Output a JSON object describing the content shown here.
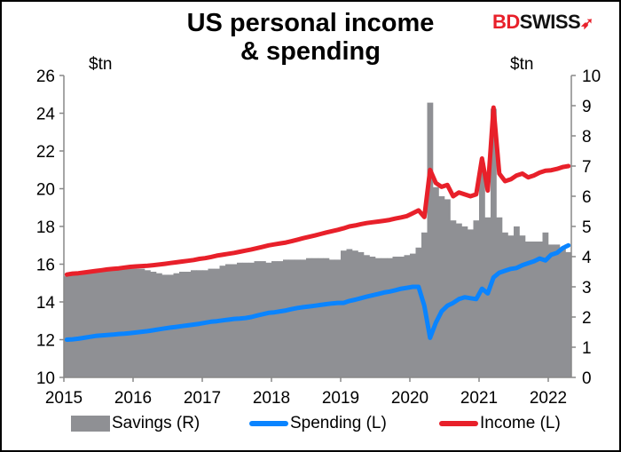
{
  "title_line1": "US personal income",
  "title_line2": "& spending",
  "logo": {
    "part1": "BD",
    "part2": "SWISS",
    "mark": "➶"
  },
  "chart_data": {
    "type": "bar+line",
    "title": "US personal income & spending",
    "left_axis": {
      "label": "$tn",
      "range": [
        10,
        26
      ],
      "ticks": [
        10,
        12,
        14,
        16,
        18,
        20,
        22,
        24,
        26
      ]
    },
    "right_axis": {
      "label": "$tn",
      "range": [
        0,
        10
      ],
      "ticks": [
        0,
        1,
        2,
        3,
        4,
        5,
        6,
        7,
        8,
        9,
        10
      ]
    },
    "x_axis": {
      "ticks": [
        "2015",
        "2016",
        "2017",
        "2018",
        "2019",
        "2020",
        "2021",
        "2022"
      ],
      "start": "2015-01",
      "end": "2022-04",
      "frequency": "monthly"
    },
    "grid": false,
    "legend_placement": "bottom",
    "colors": {
      "savings": "#8f9094",
      "spending": "#0a84ff",
      "income": "#e8202a"
    },
    "series": [
      {
        "name": "Savings (R)",
        "type": "bar",
        "axis": "right",
        "values": [
          3.35,
          3.4,
          3.4,
          3.45,
          3.45,
          3.5,
          3.5,
          3.55,
          3.55,
          3.6,
          3.6,
          3.6,
          3.6,
          3.6,
          3.55,
          3.5,
          3.45,
          3.4,
          3.4,
          3.45,
          3.5,
          3.5,
          3.55,
          3.55,
          3.55,
          3.6,
          3.6,
          3.7,
          3.75,
          3.75,
          3.8,
          3.8,
          3.8,
          3.85,
          3.85,
          3.8,
          3.85,
          3.85,
          3.9,
          3.9,
          3.9,
          3.9,
          3.95,
          3.95,
          3.95,
          3.95,
          3.9,
          3.9,
          4.2,
          4.25,
          4.2,
          4.15,
          4.05,
          4.0,
          3.95,
          3.95,
          3.95,
          4.0,
          4.0,
          4.05,
          4.1,
          4.3,
          4.8,
          9.1,
          6.3,
          6.0,
          5.9,
          5.2,
          5.1,
          5.0,
          4.9,
          5.2,
          7.1,
          5.3,
          8.9,
          5.3,
          4.8,
          4.7,
          5.0,
          4.7,
          4.5,
          4.5,
          4.5,
          4.8,
          4.4,
          4.4,
          4.3,
          4.15
        ]
      },
      {
        "name": "Spending (L)",
        "type": "line",
        "axis": "left",
        "values": [
          12.0,
          12.02,
          12.05,
          12.1,
          12.15,
          12.2,
          12.22,
          12.25,
          12.27,
          12.3,
          12.32,
          12.35,
          12.38,
          12.42,
          12.45,
          12.5,
          12.55,
          12.6,
          12.64,
          12.68,
          12.72,
          12.76,
          12.8,
          12.84,
          12.9,
          12.95,
          12.98,
          13.02,
          13.06,
          13.1,
          13.12,
          13.15,
          13.2,
          13.28,
          13.35,
          13.42,
          13.45,
          13.5,
          13.55,
          13.62,
          13.68,
          13.72,
          13.76,
          13.8,
          13.84,
          13.88,
          13.92,
          13.95,
          13.95,
          14.05,
          14.12,
          14.2,
          14.28,
          14.35,
          14.42,
          14.5,
          14.55,
          14.62,
          14.7,
          14.75,
          14.8,
          14.8,
          13.8,
          12.1,
          12.9,
          13.5,
          13.8,
          13.95,
          14.15,
          14.25,
          14.2,
          14.15,
          14.7,
          14.45,
          15.3,
          15.55,
          15.65,
          15.75,
          15.8,
          15.95,
          16.05,
          16.15,
          16.3,
          16.2,
          16.5,
          16.6,
          16.85,
          17.0
        ]
      },
      {
        "name": "Income (L)",
        "type": "line",
        "axis": "left",
        "values": [
          15.45,
          15.5,
          15.52,
          15.56,
          15.6,
          15.64,
          15.68,
          15.72,
          15.75,
          15.78,
          15.82,
          15.86,
          15.88,
          15.9,
          15.92,
          15.95,
          15.98,
          16.02,
          16.06,
          16.1,
          16.14,
          16.18,
          16.22,
          16.28,
          16.32,
          16.38,
          16.45,
          16.5,
          16.55,
          16.6,
          16.66,
          16.72,
          16.78,
          16.85,
          16.92,
          17.0,
          17.05,
          17.1,
          17.15,
          17.22,
          17.3,
          17.38,
          17.45,
          17.52,
          17.6,
          17.68,
          17.75,
          17.82,
          17.9,
          18.0,
          18.05,
          18.12,
          18.18,
          18.22,
          18.26,
          18.3,
          18.35,
          18.42,
          18.48,
          18.55,
          18.7,
          18.85,
          18.5,
          21.0,
          20.3,
          20.1,
          20.2,
          19.6,
          19.8,
          19.7,
          19.6,
          19.7,
          21.6,
          19.9,
          24.3,
          20.8,
          20.4,
          20.5,
          20.7,
          20.8,
          20.6,
          20.7,
          20.85,
          20.95,
          20.98,
          21.05,
          21.15,
          21.2
        ]
      }
    ]
  }
}
